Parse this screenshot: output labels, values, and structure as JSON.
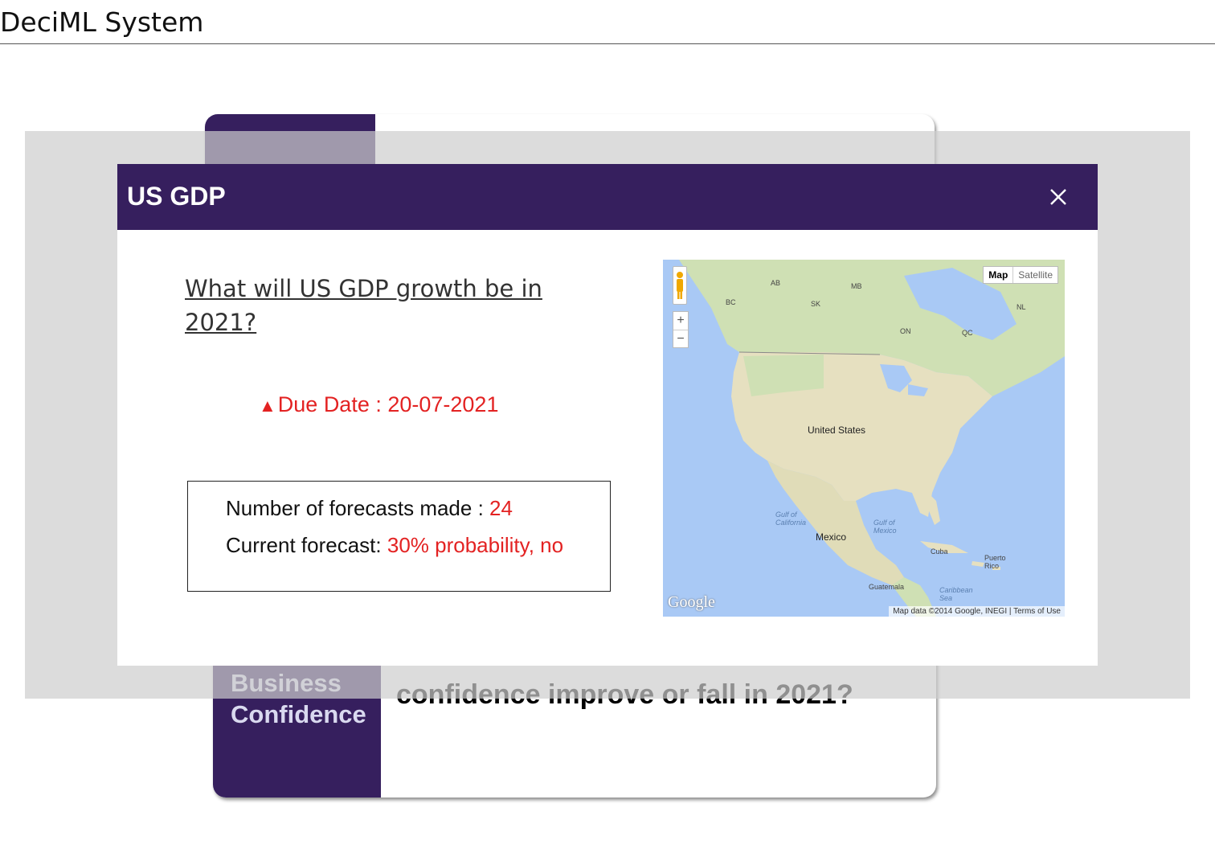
{
  "app": {
    "title": "DeciML System"
  },
  "cards": {
    "bottom_tag": "Business Confidence",
    "bottom_question": "confidence improve or fall in 2021?"
  },
  "modal": {
    "title": "US GDP",
    "question": "What will US GDP growth be in 2021?",
    "due_date": "Due Date : 20-07-2021",
    "forecast_count_label": "Number of forecasts made : ",
    "forecast_count_value": "24",
    "current_forecast_label": "Current forecast: ",
    "current_forecast_value": "30% probability, no"
  },
  "map": {
    "type_map": "Map",
    "type_satellite": "Satellite",
    "zoom_in": "+",
    "zoom_out": "−",
    "logo": "Google",
    "attribution": "Map data ©2014 Google, INEGI  |  Terms of Use",
    "labels": {
      "united_states": "United States",
      "mexico": "Mexico",
      "cuba": "Cuba",
      "gulf_mexico": "Gulf of Mexico",
      "gulf_california": "Gulf of California",
      "puerto_rico": "Puerto Rico",
      "guatemala": "Guatemala",
      "caribbean": "Caribbean Sea",
      "on": "ON",
      "qc": "QC",
      "bc": "BC",
      "ab": "AB",
      "sk": "SK",
      "mb": "MB",
      "nl": "NL"
    }
  },
  "colors": {
    "brand": "#361f5e",
    "alert": "#e32222"
  }
}
